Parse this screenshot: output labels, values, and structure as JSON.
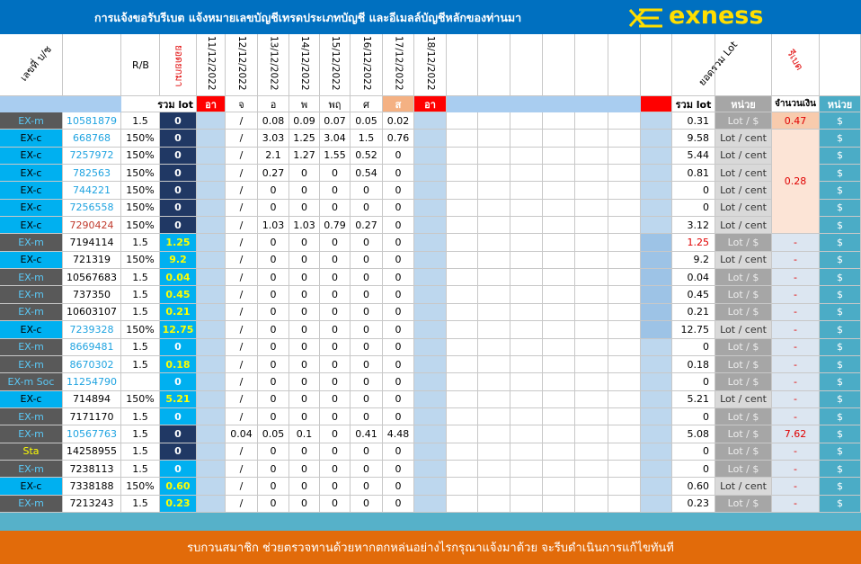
{
  "header": {
    "title": "การแจ้งขอรับรีเบต  แจ้งหมายเลขบัญชีเทรดประเภทบัญชี และอีเมลล์บัญชีหลักของท่านมา",
    "logo": "exness"
  },
  "table": {
    "column_headers": [
      "เลขที่ บ/ช",
      "R/B",
      "ยอดยกมา",
      "11/12/2022",
      "12/12/2022",
      "13/12/2022",
      "14/12/2022",
      "15/12/2022",
      "16/12/2022",
      "17/12/2022",
      "18/12/2022",
      "ยอดรวม Lot",
      "รีเบต"
    ],
    "sub_headers": [
      "รวม lot",
      "อา",
      "จ",
      "อ",
      "พ",
      "พฤ",
      "ศ",
      "ส",
      "อา",
      "รวม lot",
      "หน่วย",
      "จำนวนเงิน",
      "หน่วย"
    ],
    "account_colors": [
      "#1fa3e0",
      "#1fa3e0",
      "#1fa3e0",
      "#1fa3e0",
      "#1fa3e0",
      "#1fa3e0",
      "#c0392b",
      "#000000",
      "#000000",
      "#000000",
      "#000000",
      "#000000",
      "#1fa3e0",
      "#1fa3e0",
      "#1fa3e0",
      "#1fa3e0",
      "#000000",
      "#000000",
      "#1fa3e0",
      "#000000",
      "#000000",
      "#000000",
      "#000000"
    ],
    "total_colors": [
      "#203864",
      "#203864",
      "#203864",
      "#203864",
      "#203864",
      "#203864",
      "#203864",
      "#00b0f0",
      "#00b0f0",
      "#00b0f0",
      "#00b0f0",
      "#00b0f0",
      "#00b0f0",
      "#00b0f0",
      "#00b0f0",
      "#00b0f0",
      "#00b0f0",
      "#00b0f0",
      "#203864",
      "#203864",
      "#00b0f0",
      "#00b0f0",
      "#00b0f0"
    ],
    "rows": [
      [
        "EX-m",
        "10581879",
        "1.5",
        "0",
        null,
        "/",
        "0.08",
        "0.09",
        "0.07",
        "0.05",
        "0.02",
        null,
        "0.31",
        "Lot / $",
        "0.47",
        "$"
      ],
      [
        "EX-c",
        "668768",
        "150%",
        "0",
        null,
        "/",
        "3.03",
        "1.25",
        "3.04",
        "1.5",
        "0.76",
        null,
        "9.58",
        "Lot / cent",
        "0.28",
        "$"
      ],
      [
        "EX-c",
        "7257972",
        "150%",
        "0",
        null,
        "/",
        "2.1",
        "1.27",
        "1.55",
        "0.52",
        "0",
        null,
        "5.44",
        "Lot / cent",
        null,
        "$"
      ],
      [
        "EX-c",
        "782563",
        "150%",
        "0",
        null,
        "/",
        "0.27",
        "0",
        "0",
        "0.54",
        "0",
        null,
        "0.81",
        "Lot / cent",
        null,
        "$"
      ],
      [
        "EX-c",
        "744221",
        "150%",
        "0",
        null,
        "/",
        "0",
        "0",
        "0",
        "0",
        "0",
        null,
        "0",
        "Lot / cent",
        null,
        "$"
      ],
      [
        "EX-c",
        "7256558",
        "150%",
        "0",
        null,
        "/",
        "0",
        "0",
        "0",
        "0",
        "0",
        null,
        "0",
        "Lot / cent",
        null,
        "$"
      ],
      [
        "EX-c",
        "7290424",
        "150%",
        "0",
        null,
        "/",
        "1.03",
        "1.03",
        "0.79",
        "0.27",
        "0",
        null,
        "3.12",
        "Lot / cent",
        null,
        "$"
      ],
      [
        "EX-m",
        "7194114",
        "1.5",
        "1.25",
        null,
        "/",
        "0",
        "0",
        "0",
        "0",
        "0",
        null,
        "1.25",
        "Lot / $",
        "-",
        "$"
      ],
      [
        "EX-c",
        "721319",
        "150%",
        "9.2",
        null,
        "/",
        "0",
        "0",
        "0",
        "0",
        "0",
        null,
        "9.2",
        "Lot / cent",
        "-",
        "$"
      ],
      [
        "EX-m",
        "10567683",
        "1.5",
        "0.04",
        null,
        "/",
        "0",
        "0",
        "0",
        "0",
        "0",
        null,
        "0.04",
        "Lot / $",
        "-",
        "$"
      ],
      [
        "EX-m",
        "737350",
        "1.5",
        "0.45",
        null,
        "/",
        "0",
        "0",
        "0",
        "0",
        "0",
        null,
        "0.45",
        "Lot / $",
        "-",
        "$"
      ],
      [
        "EX-m",
        "10603107",
        "1.5",
        "0.21",
        null,
        "/",
        "0",
        "0",
        "0",
        "0",
        "0",
        null,
        "0.21",
        "Lot / $",
        "-",
        "$"
      ],
      [
        "EX-c",
        "7239328",
        "150%",
        "12.75",
        null,
        "/",
        "0",
        "0",
        "0",
        "0",
        "0",
        null,
        "12.75",
        "Lot / cent",
        "-",
        "$"
      ],
      [
        "EX-m",
        "8669481",
        "1.5",
        "0",
        null,
        "/",
        "0",
        "0",
        "0",
        "0",
        "0",
        null,
        "0",
        "Lot / $",
        "-",
        "$"
      ],
      [
        "EX-m",
        "8670302",
        "1.5",
        "0.18",
        null,
        "/",
        "0",
        "0",
        "0",
        "0",
        "0",
        null,
        "0.18",
        "Lot / $",
        "-",
        "$"
      ],
      [
        "EX-m Soc",
        "11254790",
        null,
        "0",
        null,
        "/",
        "0",
        "0",
        "0",
        "0",
        "0",
        null,
        "0",
        "Lot / $",
        "-",
        "$"
      ],
      [
        "EX-c",
        "714894",
        "150%",
        "5.21",
        null,
        "/",
        "0",
        "0",
        "0",
        "0",
        "0",
        null,
        "5.21",
        "Lot / cent",
        "-",
        "$"
      ],
      [
        "EX-m",
        "7171170",
        "1.5",
        "0",
        null,
        "/",
        "0",
        "0",
        "0",
        "0",
        "0",
        null,
        "0",
        "Lot / $",
        "-",
        "$"
      ],
      [
        "EX-m",
        "10567763",
        "1.5",
        "0",
        null,
        "0.04",
        "0.05",
        "0.1",
        "0",
        "0.41",
        "4.48",
        null,
        "5.08",
        "Lot / $",
        "7.62",
        "$"
      ],
      [
        "Sta",
        "14258955",
        "1.5",
        "0",
        null,
        "/",
        "0",
        "0",
        "0",
        "0",
        "0",
        null,
        "0",
        "Lot / $",
        "-",
        "$"
      ],
      [
        "EX-m",
        "7238113",
        "1.5",
        "0",
        null,
        "/",
        "0",
        "0",
        "0",
        "0",
        "0",
        null,
        "0",
        "Lot / $",
        "-",
        "$"
      ],
      [
        "EX-c",
        "7338188",
        "150%",
        "0.60",
        null,
        "/",
        "0",
        "0",
        "0",
        "0",
        "0",
        null,
        "0.60",
        "Lot / cent",
        "-",
        "$"
      ],
      [
        "EX-m",
        "7213243",
        "1.5",
        "0.23",
        null,
        "/",
        "0",
        "0",
        "0",
        "0",
        "0",
        null,
        "0.23",
        "Lot / $",
        "-",
        "$"
      ]
    ]
  },
  "footer": "รบกวนสมาชิก ช่วยตรวจทานด้วยหากตกหล่นอย่างไรกรุณาแจ้งมาด้วย จะรีบดำเนินการแก้ไขทันที"
}
